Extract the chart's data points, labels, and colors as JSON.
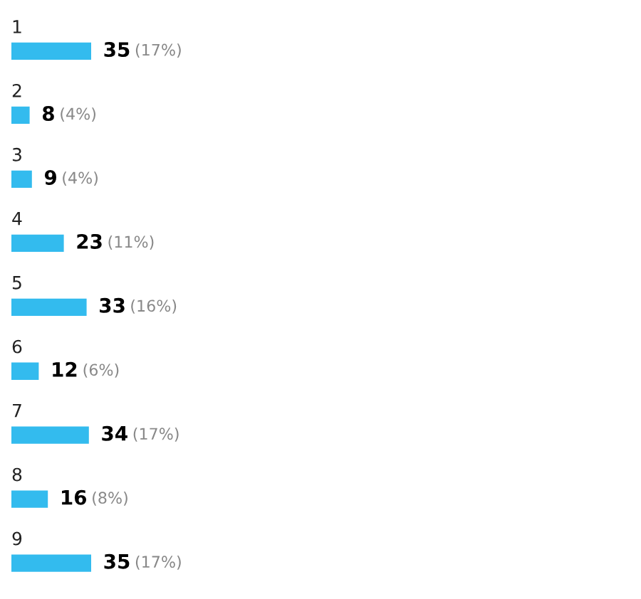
{
  "chart_data": {
    "type": "bar",
    "orientation": "horizontal",
    "categories": [
      "1",
      "2",
      "3",
      "4",
      "5",
      "6",
      "7",
      "8",
      "9"
    ],
    "values": [
      35,
      8,
      9,
      23,
      33,
      12,
      34,
      16,
      35
    ],
    "color": "#33bbee",
    "data_labels": true,
    "annotations": [
      {
        "text": "(17%)",
        "x": 35,
        "y": "1"
      },
      {
        "text": "(4%)",
        "x": 8,
        "y": "2"
      },
      {
        "text": "(4%)",
        "x": 9,
        "y": "3"
      },
      {
        "text": "(11%)",
        "x": 23,
        "y": "4"
      },
      {
        "text": "(16%)",
        "x": 33,
        "y": "5"
      },
      {
        "text": "(6%)",
        "x": 12,
        "y": "6"
      },
      {
        "text": "(17%)",
        "x": 34,
        "y": "7"
      },
      {
        "text": "(8%)",
        "x": 16,
        "y": "8"
      },
      {
        "text": "(17%)",
        "x": 35,
        "y": "9"
      }
    ]
  }
}
